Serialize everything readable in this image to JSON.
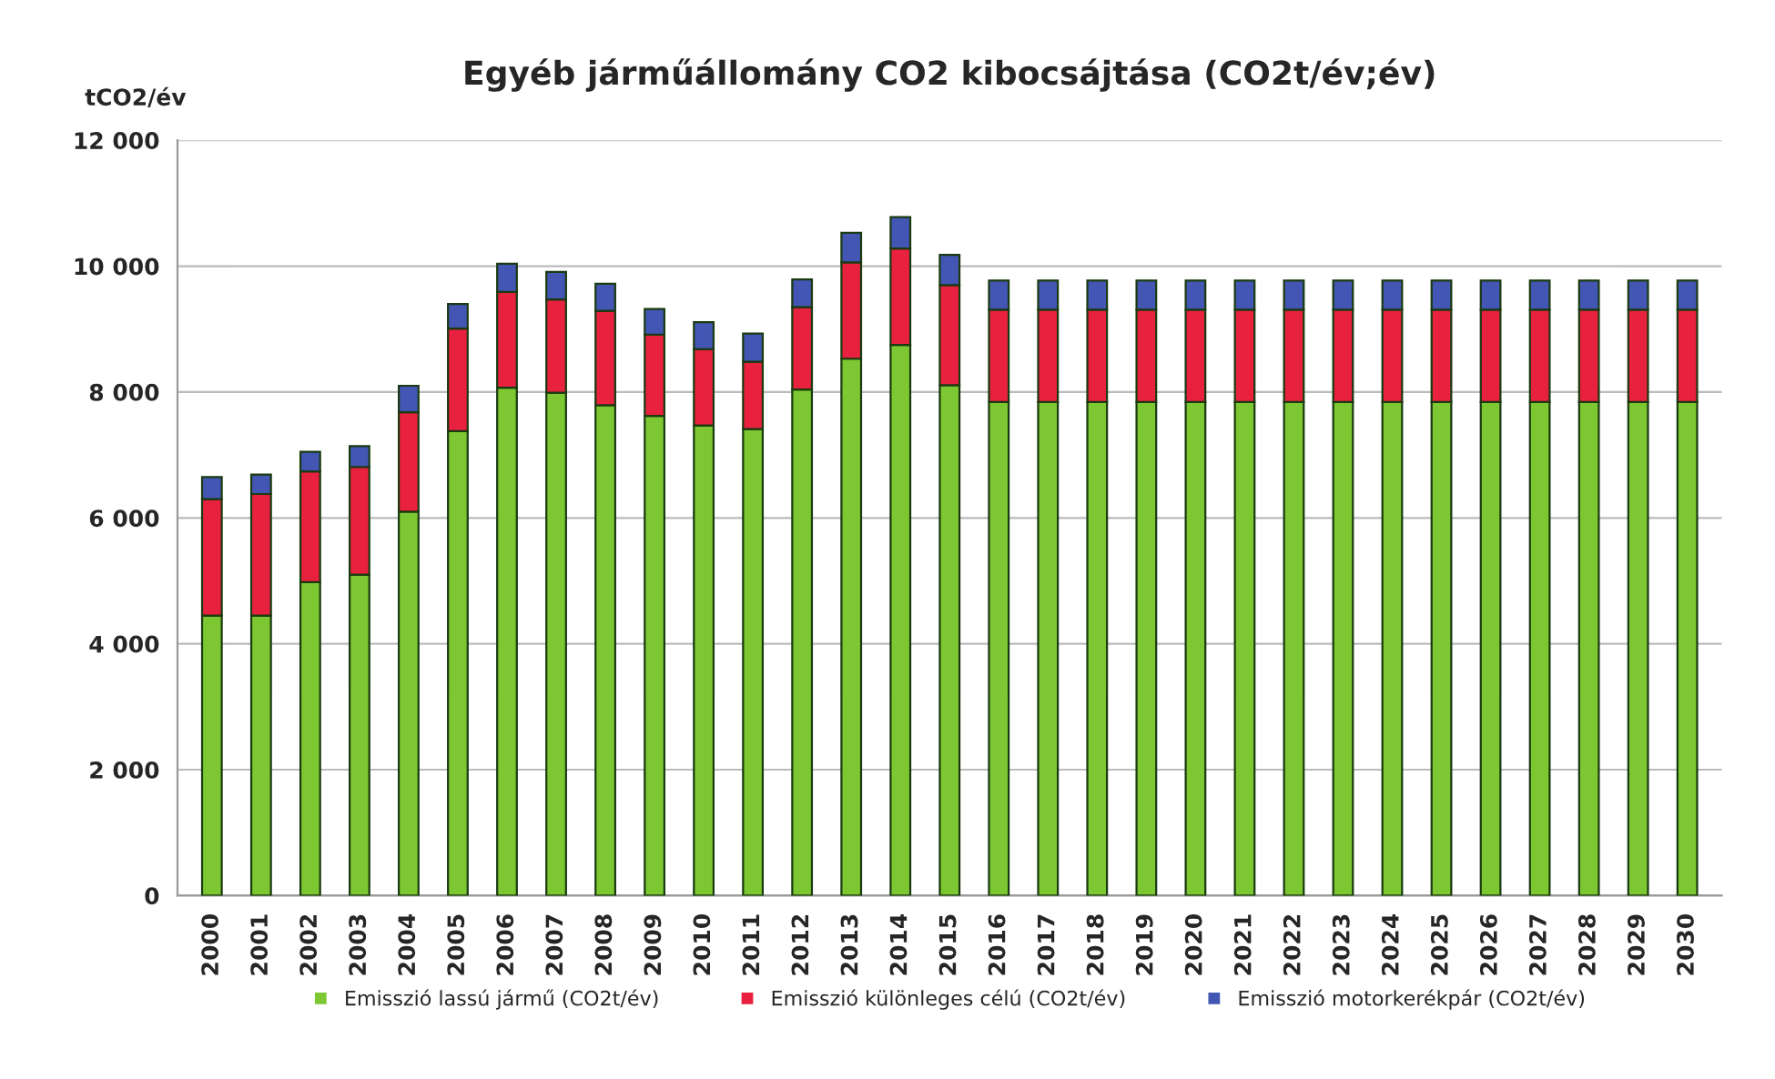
{
  "chart_data": {
    "type": "bar",
    "title": "Egyéb járműállomány CO2 kibocsájtása (CO2t/év;év)",
    "ylabel": "tCO2/év",
    "categories": [
      "2000",
      "2001",
      "2002",
      "2003",
      "2004",
      "2005",
      "2006",
      "2007",
      "2008",
      "2009",
      "2010",
      "2011",
      "2012",
      "2013",
      "2014",
      "2015",
      "2016",
      "2017",
      "2018",
      "2019",
      "2020",
      "2021",
      "2022",
      "2023",
      "2024",
      "2025",
      "2026",
      "2027",
      "2028",
      "2029",
      "2030"
    ],
    "stacked": true,
    "series": [
      {
        "name": "Emisszió lassú jármű (CO2t/év)",
        "color": "#7dc832",
        "values": [
          4450,
          4450,
          4980,
          5100,
          6100,
          7380,
          8070,
          7990,
          7790,
          7620,
          7470,
          7410,
          8040,
          8530,
          8750,
          8110,
          7840,
          7840,
          7840,
          7840,
          7840,
          7840,
          7840,
          7840,
          7840,
          7840,
          7840,
          7840,
          7840,
          7840,
          7840
        ]
      },
      {
        "name": "Emisszió különleges célú (CO2t/év)",
        "color": "#e8213f",
        "values": [
          1850,
          1930,
          1760,
          1710,
          1580,
          1630,
          1520,
          1480,
          1500,
          1290,
          1210,
          1070,
          1310,
          1530,
          1530,
          1590,
          1470,
          1470,
          1470,
          1470,
          1470,
          1470,
          1470,
          1470,
          1470,
          1470,
          1470,
          1470,
          1470,
          1470,
          1470
        ]
      },
      {
        "name": "Emisszió motorkerékpár (CO2t/év)",
        "color": "#4356b4",
        "values": [
          350,
          310,
          310,
          330,
          420,
          390,
          450,
          440,
          430,
          410,
          430,
          450,
          440,
          470,
          500,
          480,
          460,
          460,
          460,
          460,
          460,
          460,
          460,
          460,
          460,
          460,
          460,
          460,
          460,
          460,
          460
        ]
      }
    ],
    "ylim": [
      0,
      12000
    ],
    "yticks": [
      0,
      {
        "value": 2000,
        "label": "2 000"
      },
      {
        "value": 4000,
        "label": "4 000"
      },
      {
        "value": 6000,
        "label": "6 000"
      },
      {
        "value": 8000,
        "label": "8 000"
      },
      {
        "value": 10000,
        "label": "10 000"
      },
      {
        "value": 12000,
        "label": "12 000"
      }
    ],
    "grid": "y",
    "legend": "bottom"
  }
}
